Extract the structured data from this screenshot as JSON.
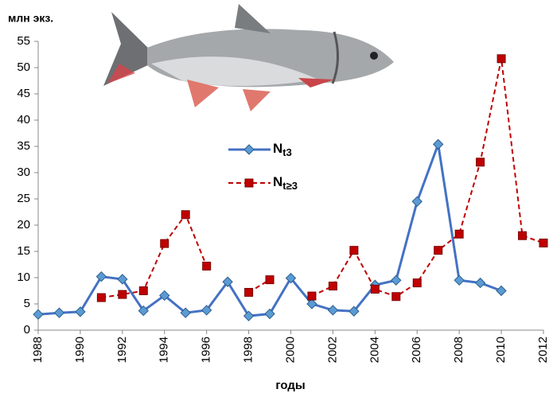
{
  "chart_data": {
    "type": "line",
    "y_label": "млн экз.",
    "x_label": "годы",
    "x": [
      1988,
      1989,
      1990,
      1991,
      1992,
      1993,
      1994,
      1995,
      1996,
      1997,
      1998,
      1999,
      2000,
      2001,
      2002,
      2003,
      2004,
      2005,
      2006,
      2007,
      2008,
      2009,
      2010,
      2011,
      2012
    ],
    "xlim": [
      1988,
      2012
    ],
    "xticks": [
      1988,
      1990,
      1992,
      1994,
      1996,
      1998,
      2000,
      2002,
      2004,
      2006,
      2008,
      2010,
      2012
    ],
    "ylim": [
      0,
      55
    ],
    "yticks": [
      0,
      5,
      10,
      15,
      20,
      25,
      30,
      35,
      40,
      45,
      50,
      55
    ],
    "grid": false,
    "series": [
      {
        "name": "Nt3",
        "color": "#4472c4",
        "marker_color": "#5b9bd5",
        "marker": "diamond",
        "linestyle": "solid",
        "values": [
          3.0,
          3.3,
          3.5,
          10.2,
          9.7,
          3.7,
          6.6,
          3.3,
          3.8,
          9.2,
          2.7,
          3.1,
          9.9,
          5.0,
          3.8,
          3.6,
          8.6,
          9.5,
          24.5,
          35.4,
          9.5,
          9.0,
          7.5,
          null,
          null
        ]
      },
      {
        "name": "Nt≥3",
        "color": "#c00000",
        "marker_color": "#c00000",
        "marker": "square",
        "linestyle": "dashed",
        "values": [
          null,
          null,
          null,
          6.2,
          6.8,
          7.5,
          16.5,
          22.0,
          12.2,
          null,
          7.2,
          9.6,
          null,
          6.5,
          8.4,
          15.2,
          7.8,
          6.4,
          9.0,
          15.2,
          18.3,
          32.0,
          51.7,
          18.0,
          16.6
        ]
      }
    ]
  }
}
